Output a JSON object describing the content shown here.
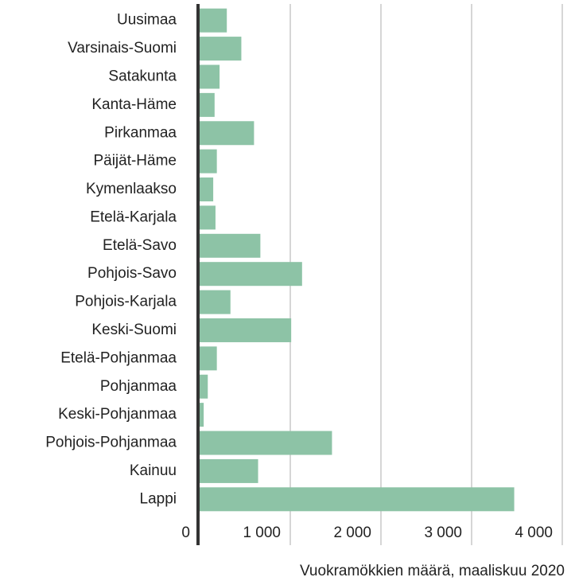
{
  "chart_data": {
    "type": "bar",
    "orientation": "horizontal",
    "x_label": "Vuokramökkien määrä, maaliskuu 2020",
    "categories": [
      "Uusimaa",
      "Varsinais-Suomi",
      "Satakunta",
      "Kanta-Häme",
      "Pirkanmaa",
      "Päijät-Häme",
      "Kymenlaakso",
      "Etelä-Karjala",
      "Etelä-Savo",
      "Pohjois-Savo",
      "Pohjois-Karjala",
      "Keski-Suomi",
      "Etelä-Pohjanmaa",
      "Pohjanmaa",
      "Keski-Pohjanmaa",
      "Pohjois-Pohjanmaa",
      "Kainuu",
      "Lappi"
    ],
    "values": [
      300,
      460,
      220,
      165,
      600,
      190,
      150,
      175,
      670,
      1130,
      340,
      1010,
      190,
      90,
      45,
      1460,
      645,
      3470
    ],
    "color": "#8dc3a6",
    "xlim": [
      0,
      4000
    ],
    "xticks": [
      0,
      {
        "value": 1000,
        "label": "1 000"
      },
      {
        "value": 2000,
        "label": "2 000"
      },
      {
        "value": 3000,
        "label": "3 000"
      },
      {
        "value": 4000,
        "label": "4 000"
      }
    ],
    "grid": true
  }
}
